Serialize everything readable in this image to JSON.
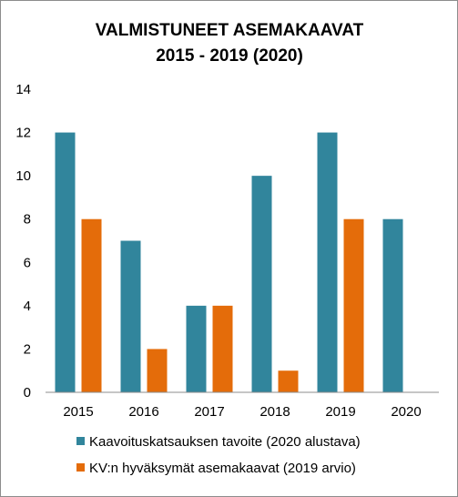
{
  "chart_data": {
    "type": "bar",
    "title": "VALMISTUNEET ASEMAKAAVAT",
    "subtitle": "2015 - 2019 (2020)",
    "categories": [
      "2015",
      "2016",
      "2017",
      "2018",
      "2019",
      "2020"
    ],
    "series": [
      {
        "name": "Kaavoituskatsauksen tavoite (2020 alustava)",
        "color": "#31859c",
        "values": [
          12,
          7,
          4,
          10,
          12,
          8
        ]
      },
      {
        "name": "KV:n hyväksymät asemakaavat (2019 arvio)",
        "color": "#e46c0a",
        "values": [
          8,
          2,
          4,
          1,
          8,
          null
        ]
      }
    ],
    "ylim": [
      0,
      14
    ],
    "yticks": [
      "0",
      "2",
      "4",
      "6",
      "8",
      "10",
      "12",
      "14"
    ],
    "grid": false,
    "legend_position": "bottom"
  }
}
